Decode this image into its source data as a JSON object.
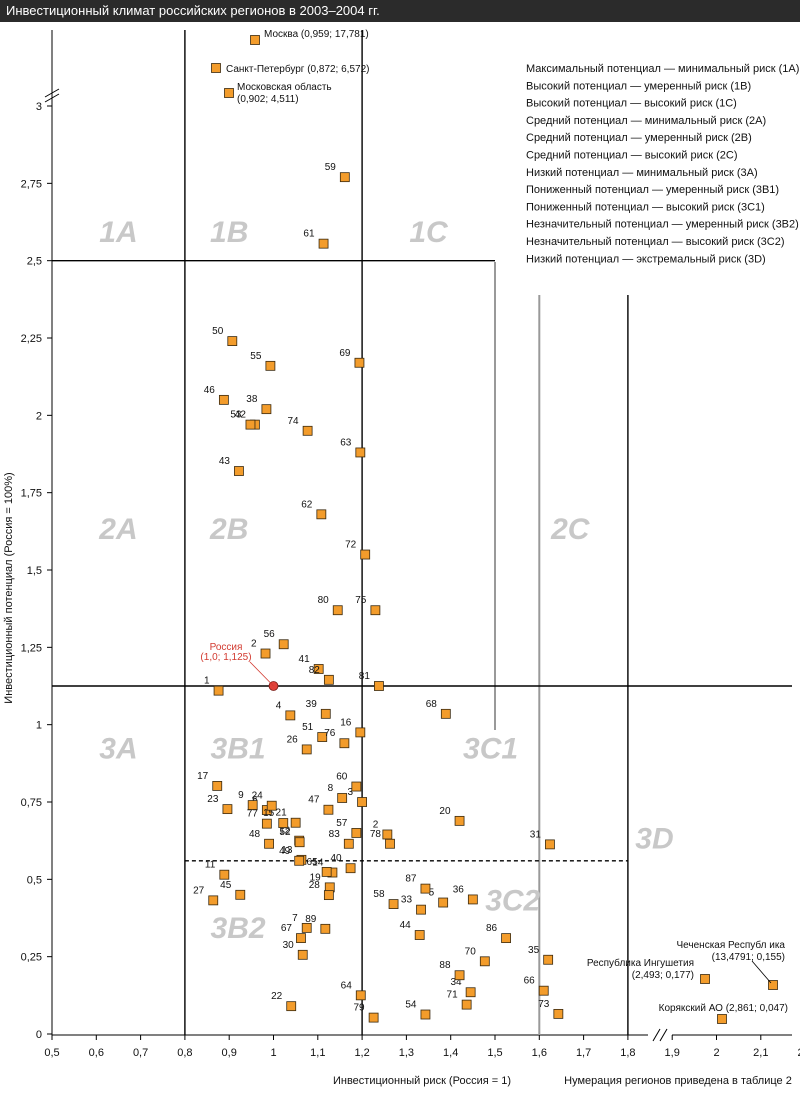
{
  "header": {
    "title": "Инвестиционный климат российских регионов в 2003–2004 гг."
  },
  "chart_data": {
    "type": "scatter",
    "xlabel": "Инвестиционный риск (Россия = 1)",
    "ylabel": "Инвестиционный потенциал (Россия = 100%)",
    "note": "Нумерация регионов приведена в таблице 2",
    "xlim": [
      0.5,
      2.2
    ],
    "ylim": [
      0,
      3
    ],
    "x_ticks": [
      "0,5",
      "0,6",
      "0,7",
      "0,8",
      "0,9",
      "1",
      "1,1",
      "1,2",
      "1,3",
      "1,4",
      "1,5",
      "1,6",
      "1,7",
      "1,8",
      "1,9",
      "2",
      "2,1",
      "2,2"
    ],
    "y_ticks": [
      "0",
      "0,25",
      "0,5",
      "0,75",
      "1",
      "1,25",
      "1,5",
      "1,75",
      "2",
      "2,25",
      "2,5",
      "2,75",
      "3"
    ],
    "legend": [
      "Максимальный потенциал — минимальный риск (1А)",
      "Высокий потенциал — умеренный риск (1В)",
      "Высокий потенциал — высокий риск (1С)",
      "Средний потенциал — минимальный риск (2А)",
      "Средний потенциал — умеренный риск (2В)",
      "Средний потенциал — высокий риск (2С)",
      "Низкий потенциал — минимальный риск (3А)",
      "Пониженный потенциал — умеренный риск (3В1)",
      "Пониженный потенциал — высокий риск (3С1)",
      "Незначительный потенциал — умеренный риск (3В2)",
      "Незначительный потенциал — высокий риск (3С2)",
      "Низкий потенциал — экстремальный риск (3D)"
    ],
    "zones": [
      {
        "label": "1A",
        "x": 0.65,
        "y": 2.56
      },
      {
        "label": "1B",
        "x": 0.9,
        "y": 2.56
      },
      {
        "label": "1C",
        "x": 1.35,
        "y": 2.56
      },
      {
        "label": "2A",
        "x": 0.65,
        "y": 1.6
      },
      {
        "label": "2B",
        "x": 0.9,
        "y": 1.6
      },
      {
        "label": "2C",
        "x": 1.67,
        "y": 1.6
      },
      {
        "label": "3A",
        "x": 0.65,
        "y": 0.89
      },
      {
        "label": "3B1",
        "x": 0.92,
        "y": 0.89
      },
      {
        "label": "3C1",
        "x": 1.49,
        "y": 0.89
      },
      {
        "label": "3D",
        "x": 1.86,
        "y": 0.6
      },
      {
        "label": "3C2",
        "x": 1.54,
        "y": 0.4
      },
      {
        "label": "3B2",
        "x": 0.92,
        "y": 0.31
      }
    ],
    "russia": {
      "label": "Россия",
      "value_label": "(1,0; 1,125)",
      "x": 1.0,
      "y": 1.125
    },
    "outliers": [
      {
        "name": "Москва",
        "label": "Москва (0,959; 17,781)",
        "x": 0.959,
        "y": 17.781
      },
      {
        "name": "Санкт-Петербург",
        "label": "Санкт-Петербург (0,872; 6,572)",
        "x": 0.872,
        "y": 6.572
      },
      {
        "name": "Московская область",
        "label": "Московская область",
        "label2": "(0,902; 4,511)",
        "x": 0.902,
        "y": 4.511
      },
      {
        "name": "Чеченская Республ ика",
        "label": "Чеченская Республ ика",
        "label2": "(13,4791; 0,155)",
        "x": 13.4791,
        "y": 0.155
      },
      {
        "name": "Республика Ингушетия",
        "label": "Республика Ингушетия",
        "label2": "(2,493; 0,177)",
        "x": 2.493,
        "y": 0.177
      },
      {
        "name": "Корякский АО",
        "label": "Корякский АО (2,861; 0,047)",
        "x": 2.861,
        "y": 0.047
      }
    ],
    "points": [
      {
        "id": "1",
        "x": 0.876,
        "y": 1.11
      },
      {
        "id": "2",
        "x": 0.982,
        "y": 1.23
      },
      {
        "id": "2",
        "x": 1.257,
        "y": 0.645
      },
      {
        "id": "3",
        "x": 1.2,
        "y": 0.75
      },
      {
        "id": "4",
        "x": 1.038,
        "y": 1.03
      },
      {
        "id": "5",
        "x": 1.383,
        "y": 0.425
      },
      {
        "id": "6",
        "x": 0.985,
        "y": 0.724
      },
      {
        "id": "7",
        "x": 1.075,
        "y": 0.343
      },
      {
        "id": "8",
        "x": 1.155,
        "y": 0.763
      },
      {
        "id": "9",
        "x": 0.953,
        "y": 0.74
      },
      {
        "id": "11",
        "x": 0.889,
        "y": 0.515
      },
      {
        "id": "12",
        "x": 1.058,
        "y": 0.625
      },
      {
        "id": "13",
        "x": 1.063,
        "y": 0.563
      },
      {
        "id": "14",
        "x": 1.133,
        "y": 0.522
      },
      {
        "id": "15",
        "x": 1.022,
        "y": 0.682
      },
      {
        "id": "16",
        "x": 1.196,
        "y": 0.975
      },
      {
        "id": "17",
        "x": 0.873,
        "y": 0.802
      },
      {
        "id": "19",
        "x": 1.127,
        "y": 0.474
      },
      {
        "id": "20",
        "x": 1.42,
        "y": 0.689
      },
      {
        "id": "21",
        "x": 1.05,
        "y": 0.683
      },
      {
        "id": "22",
        "x": 1.04,
        "y": 0.09
      },
      {
        "id": "23",
        "x": 0.896,
        "y": 0.727
      },
      {
        "id": "24",
        "x": 0.996,
        "y": 0.738
      },
      {
        "id": "26",
        "x": 1.075,
        "y": 0.92
      },
      {
        "id": "27",
        "x": 0.864,
        "y": 0.432
      },
      {
        "id": "28",
        "x": 1.125,
        "y": 0.449
      },
      {
        "id": "30",
        "x": 1.066,
        "y": 0.256
      },
      {
        "id": "31",
        "x": 1.624,
        "y": 0.613
      },
      {
        "id": "33",
        "x": 1.333,
        "y": 0.402
      },
      {
        "id": "34",
        "x": 1.445,
        "y": 0.135
      },
      {
        "id": "35",
        "x": 1.62,
        "y": 0.24
      },
      {
        "id": "36",
        "x": 1.45,
        "y": 0.435
      },
      {
        "id": "38",
        "x": 0.984,
        "y": 2.02
      },
      {
        "id": "39",
        "x": 1.118,
        "y": 1.035
      },
      {
        "id": "40",
        "x": 1.174,
        "y": 0.536
      },
      {
        "id": "41",
        "x": 1.102,
        "y": 1.18
      },
      {
        "id": "42",
        "x": 0.958,
        "y": 1.97
      },
      {
        "id": "43",
        "x": 0.922,
        "y": 1.82
      },
      {
        "id": "44",
        "x": 1.33,
        "y": 0.32
      },
      {
        "id": "45",
        "x": 0.925,
        "y": 0.45
      },
      {
        "id": "46",
        "x": 0.888,
        "y": 2.05
      },
      {
        "id": "47",
        "x": 1.124,
        "y": 0.725
      },
      {
        "id": "48",
        "x": 0.99,
        "y": 0.615
      },
      {
        "id": "49",
        "x": 1.058,
        "y": 0.56
      },
      {
        "id": "50",
        "x": 0.907,
        "y": 2.24
      },
      {
        "id": "51",
        "x": 1.11,
        "y": 0.96
      },
      {
        "id": "52",
        "x": 1.059,
        "y": 0.62
      },
      {
        "id": "53",
        "x": 0.948,
        "y": 1.97
      },
      {
        "id": "54",
        "x": 1.343,
        "y": 0.063
      },
      {
        "id": "56",
        "x": 1.023,
        "y": 1.26
      },
      {
        "id": "55",
        "x": 0.993,
        "y": 2.16
      },
      {
        "id": "57",
        "x": 1.187,
        "y": 0.65
      },
      {
        "id": "58",
        "x": 1.271,
        "y": 0.42
      },
      {
        "id": "59",
        "x": 1.161,
        "y": 2.77
      },
      {
        "id": "60",
        "x": 1.187,
        "y": 0.8
      },
      {
        "id": "61",
        "x": 1.113,
        "y": 2.555
      },
      {
        "id": "62",
        "x": 1.108,
        "y": 1.68
      },
      {
        "id": "63",
        "x": 1.196,
        "y": 1.88
      },
      {
        "id": "64",
        "x": 1.197,
        "y": 0.125
      },
      {
        "id": "65",
        "x": 1.12,
        "y": 0.524
      },
      {
        "id": "66",
        "x": 1.61,
        "y": 0.14
      },
      {
        "id": "67",
        "x": 1.062,
        "y": 0.31
      },
      {
        "id": "68",
        "x": 1.389,
        "y": 1.035
      },
      {
        "id": "69",
        "x": 1.194,
        "y": 2.17
      },
      {
        "id": "70",
        "x": 1.477,
        "y": 0.235
      },
      {
        "id": "71",
        "x": 1.436,
        "y": 0.095
      },
      {
        "id": "72",
        "x": 1.207,
        "y": 1.55
      },
      {
        "id": "73",
        "x": 1.643,
        "y": 0.065
      },
      {
        "id": "74",
        "x": 1.077,
        "y": 1.95
      },
      {
        "id": "75",
        "x": 1.23,
        "y": 1.37
      },
      {
        "id": "76",
        "x": 1.16,
        "y": 0.94
      },
      {
        "id": "77",
        "x": 0.985,
        "y": 0.68
      },
      {
        "id": "78",
        "x": 1.263,
        "y": 0.615
      },
      {
        "id": "79",
        "x": 1.226,
        "y": 0.053
      },
      {
        "id": "80",
        "x": 1.145,
        "y": 1.37
      },
      {
        "id": "81",
        "x": 1.238,
        "y": 1.125
      },
      {
        "id": "82",
        "x": 1.125,
        "y": 1.145
      },
      {
        "id": "83",
        "x": 1.17,
        "y": 0.615
      },
      {
        "id": "86",
        "x": 1.525,
        "y": 0.31
      },
      {
        "id": "87",
        "x": 1.343,
        "y": 0.47
      },
      {
        "id": "88",
        "x": 1.42,
        "y": 0.19
      },
      {
        "id": "89",
        "x": 1.117,
        "y": 0.34
      }
    ]
  }
}
